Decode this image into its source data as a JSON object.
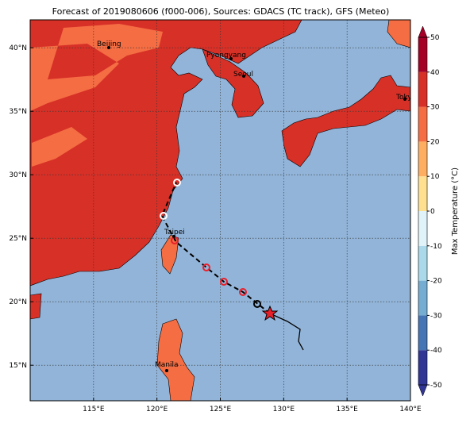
{
  "title": "Forecast of 2019080606 (f000-006), Sources: GDACS (TC track), GFS (Meteo)",
  "map": {
    "lonlim": [
      110,
      140
    ],
    "latlim": [
      12.2,
      42.2
    ],
    "lonticks": [
      {
        "value": 115,
        "label": "115°E"
      },
      {
        "value": 120,
        "label": "120°E"
      },
      {
        "value": 125,
        "label": "125°E"
      },
      {
        "value": 130,
        "label": "130°E"
      },
      {
        "value": 135,
        "label": "135°E"
      },
      {
        "value": 140,
        "label": "140°E"
      }
    ],
    "latticks": [
      {
        "value": 15,
        "label": "15°N"
      },
      {
        "value": 20,
        "label": "20°N"
      },
      {
        "value": 25,
        "label": "25°N"
      },
      {
        "value": 30,
        "label": "30°N"
      },
      {
        "value": 35,
        "label": "35°N"
      },
      {
        "value": 40,
        "label": "40°N"
      }
    ],
    "cities": [
      "Beijing",
      "Pyongyang",
      "Seoul",
      "Tokyo",
      "Taipei",
      "Manila"
    ]
  },
  "colorbar": {
    "label": "Max Temperature (°C)",
    "lim": [
      -50,
      50
    ],
    "ticks": [
      -50,
      -40,
      -30,
      -20,
      -10,
      0,
      10,
      20,
      30,
      40,
      50
    ],
    "colors": [
      "#313695",
      "#4575b4",
      "#74add1",
      "#abd9e9",
      "#e0f3f8",
      "#fee090",
      "#fdae61",
      "#f46d43",
      "#d73027",
      "#a50026"
    ]
  }
}
